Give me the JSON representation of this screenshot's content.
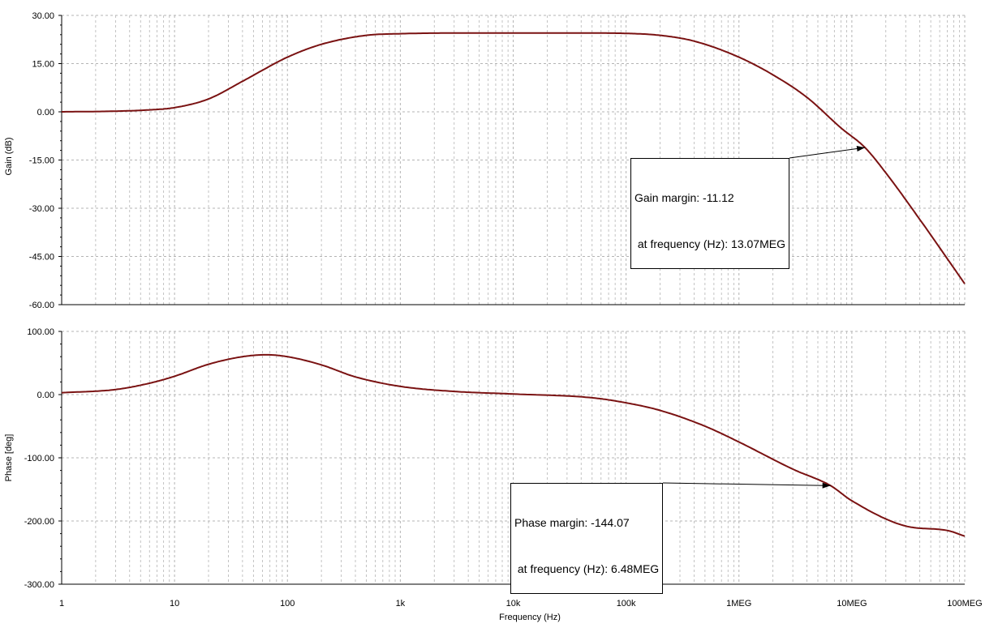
{
  "colors": {
    "curve": "#7a1212",
    "grid": "#b4b4b4",
    "axis": "#000000",
    "background": "#ffffff"
  },
  "chart_data": [
    {
      "type": "line",
      "xscale": "log",
      "xlabel": "Frequency (Hz)",
      "ylabel": "Gain (dB)",
      "xlim": [
        1,
        100000000
      ],
      "ylim": [
        -60,
        30
      ],
      "yticks": [
        30,
        15,
        0,
        -15,
        -30,
        -45,
        -60
      ],
      "ytick_labels": [
        "30.00",
        "15.00",
        "0.00",
        "-15.00",
        "-30.00",
        "-45.00",
        "-60.00"
      ],
      "grid": true,
      "x": [
        1,
        3,
        6,
        10,
        20,
        40,
        100,
        200,
        500,
        1000,
        3000,
        10000,
        50000,
        100000,
        200000,
        400000,
        1000000,
        2000000,
        4000000,
        8000000,
        13070000,
        20000000,
        40000000,
        100000000
      ],
      "y": [
        0,
        0.2,
        0.6,
        1.3,
        4,
        9.5,
        17,
        21,
        23.8,
        24.3,
        24.5,
        24.5,
        24.5,
        24.4,
        23.8,
        22,
        17,
        11.5,
        4.5,
        -5,
        -11.12,
        -19,
        -33.5,
        -53.5
      ],
      "annotation": {
        "line1": "Gain margin: -11.12",
        "line2": " at frequency (Hz): 13.07MEG",
        "x": 13070000,
        "y": -11.12
      }
    },
    {
      "type": "line",
      "xscale": "log",
      "xlabel": "Frequency (Hz)",
      "ylabel": "Phase [deg]",
      "xlim": [
        1,
        100000000
      ],
      "ylim": [
        -300,
        100
      ],
      "yticks": [
        100,
        0,
        -100,
        -200,
        -300
      ],
      "ytick_labels": [
        "100.00",
        "0.00",
        "-100.00",
        "-200.00",
        "-300.00"
      ],
      "xticks": [
        1,
        10,
        100,
        1000,
        10000,
        100000,
        1000000,
        10000000,
        100000000
      ],
      "xtick_labels": [
        "1",
        "10",
        "100",
        "1k",
        "10k",
        "100k",
        "1MEG",
        "10MEG",
        "100MEG"
      ],
      "grid": true,
      "x": [
        1,
        3,
        6,
        10,
        20,
        40,
        65,
        100,
        200,
        400,
        1000,
        3000,
        10000,
        50000,
        100000,
        200000,
        500000,
        1000000,
        3000000,
        6480000,
        10000000,
        30000000,
        70000000,
        100000000
      ],
      "y": [
        3,
        8,
        18,
        29,
        48,
        60,
        63,
        60,
        47,
        28,
        13,
        5,
        1,
        -5,
        -13,
        -25,
        -50,
        -75,
        -118,
        -144.07,
        -168,
        -208,
        -215,
        -224
      ],
      "annotation": {
        "line1": "Phase margin: -144.07",
        "line2": " at frequency (Hz): 6.48MEG",
        "x": 6480000,
        "y": -144.07
      }
    }
  ]
}
